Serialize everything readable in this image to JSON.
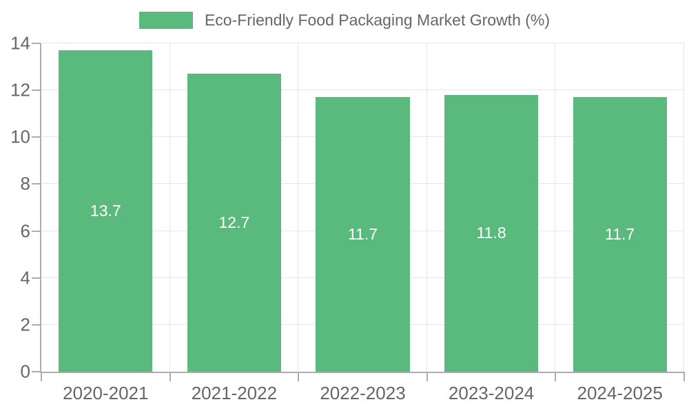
{
  "chart_data": {
    "type": "bar",
    "title": "Eco-Friendly Food Packaging Market Growth (%)",
    "categories": [
      "2020-2021",
      "2021-2022",
      "2022-2023",
      "2023-2024",
      "2024-2025"
    ],
    "values": [
      13.7,
      12.7,
      11.7,
      11.8,
      11.7
    ],
    "value_labels": [
      "13.7",
      "12.7",
      "11.7",
      "11.8",
      "11.7"
    ],
    "xlabel": "",
    "ylabel": "",
    "ylim": [
      0,
      14
    ],
    "ytick_step": 2,
    "ytick_labels": [
      "0",
      "2",
      "4",
      "6",
      "8",
      "10",
      "12",
      "14"
    ],
    "legend": {
      "position": "top-center",
      "label": "Eco-Friendly Food Packaging Market Growth (%)"
    },
    "grid": {
      "horizontal": true,
      "vertical": true
    },
    "colors": {
      "bar": "#5aba7d",
      "bar_value_text": "#ffffff",
      "gridline": "#e6e6e6",
      "axis_line": "#adadad",
      "tick_text": "#666666",
      "legend_text": "#666666",
      "background": "#ffffff"
    }
  }
}
